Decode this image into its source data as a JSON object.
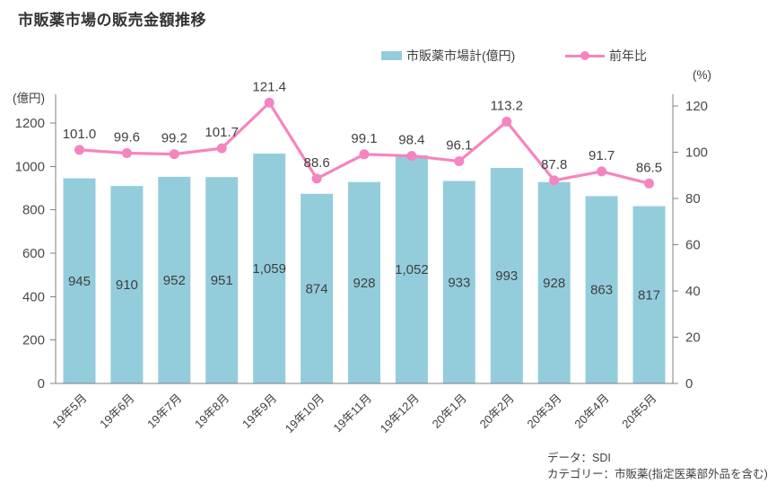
{
  "title": "市販薬市場の販売金額推移",
  "legend": {
    "bar_label": "市販薬市場計(億円)",
    "line_label": "前年比"
  },
  "axes": {
    "left_unit": "(億円)",
    "right_unit": "(%)"
  },
  "footer": {
    "source": "データ：SDI",
    "category": "カテゴリー：市販薬(指定医薬部外品を含む)"
  },
  "colors": {
    "bar": "#93cddc",
    "line": "#f585be",
    "text": "#3f3f3f",
    "axis": "#808080"
  },
  "chart_data": {
    "type": "bar+line combo",
    "categories": [
      "19年5月",
      "19年6月",
      "19年7月",
      "19年8月",
      "19年9月",
      "19年10月",
      "19年11月",
      "19年12月",
      "20年1月",
      "20年2月",
      "20年3月",
      "20年4月",
      "20年5月"
    ],
    "series": [
      {
        "name": "市販薬市場計(億円)",
        "type": "bar",
        "axis": "left",
        "values": [
          945,
          910,
          952,
          951,
          1059,
          874,
          928,
          1052,
          933,
          993,
          928,
          863,
          817
        ]
      },
      {
        "name": "前年比",
        "type": "line",
        "axis": "right",
        "values": [
          101.0,
          99.6,
          99.2,
          101.7,
          121.4,
          88.6,
          99.1,
          98.4,
          96.1,
          113.2,
          87.8,
          91.7,
          86.5
        ]
      }
    ],
    "left_axis": {
      "label": "(億円)",
      "range": [
        0,
        1200
      ],
      "tick_step": 200
    },
    "right_axis": {
      "label": "(%)",
      "range": [
        0,
        120
      ],
      "tick_step": 20
    },
    "grid": false,
    "legend_position": "top",
    "value_labels": "shown for both series"
  }
}
